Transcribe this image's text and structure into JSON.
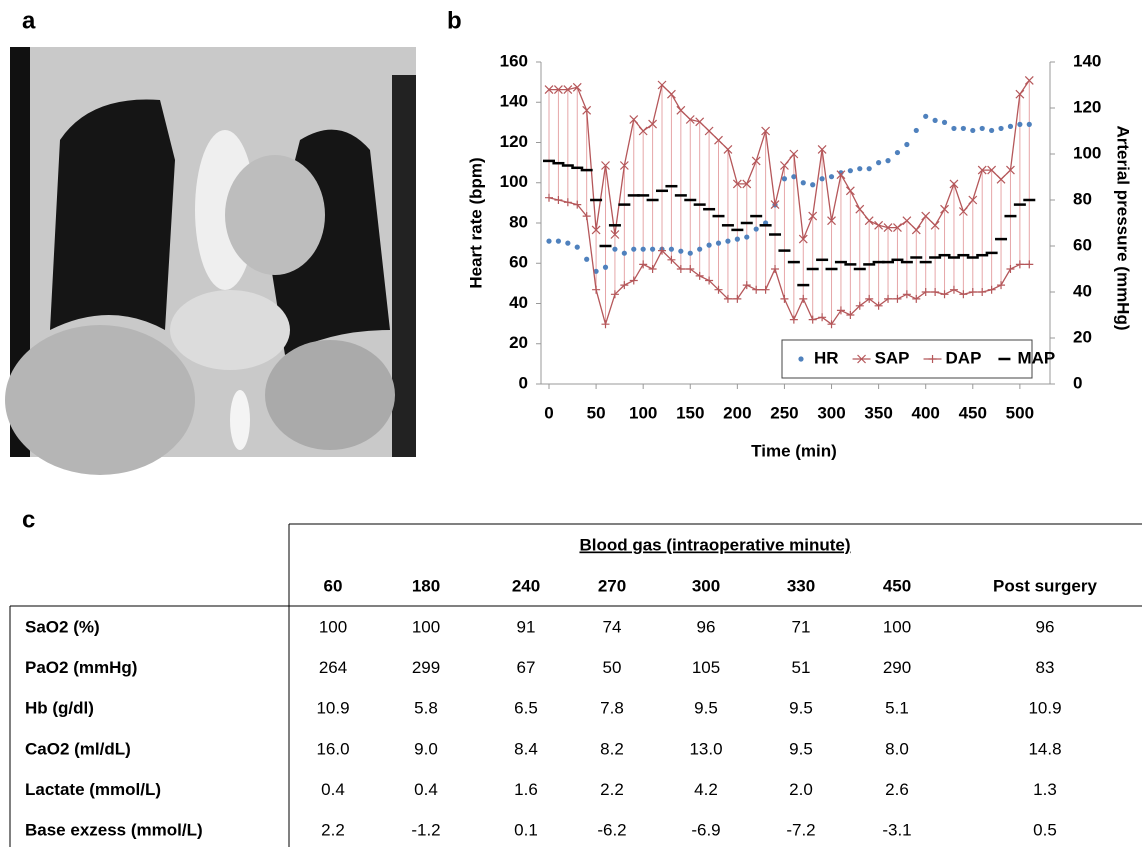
{
  "panels": {
    "a": "a",
    "b": "b",
    "c": "c"
  },
  "chart_data": {
    "type": "line",
    "x_label": "Time (min)",
    "y_label": "Heart rate (bpm)",
    "y2_label": "Arterial pressure (mmHg)",
    "xlim": [
      0,
      515
    ],
    "xticks": [
      0,
      50,
      100,
      150,
      200,
      250,
      300,
      350,
      400,
      450,
      500
    ],
    "ylim": [
      0,
      160
    ],
    "yticks": [
      0,
      20,
      40,
      60,
      80,
      100,
      120,
      140,
      160
    ],
    "y2lim": [
      0,
      140
    ],
    "y2ticks": [
      0,
      20,
      40,
      60,
      80,
      100,
      120,
      140
    ],
    "legend": "lower right",
    "range_color": "#e6a6a8",
    "x": [
      0,
      10,
      20,
      30,
      40,
      50,
      60,
      70,
      80,
      90,
      100,
      110,
      120,
      130,
      140,
      150,
      160,
      170,
      180,
      190,
      200,
      210,
      220,
      230,
      240,
      250,
      260,
      270,
      280,
      290,
      300,
      310,
      320,
      330,
      340,
      350,
      360,
      370,
      380,
      390,
      400,
      410,
      420,
      430,
      440,
      450,
      460,
      470,
      480,
      490,
      500,
      510
    ],
    "series": [
      {
        "name": "HR",
        "color": "#4f81bd",
        "marker": "dot",
        "line": false,
        "values": [
          71,
          71,
          70,
          68,
          62,
          56,
          58,
          67,
          65,
          67,
          67,
          67,
          67,
          67,
          66,
          65,
          67,
          69,
          70,
          71,
          72,
          73,
          77,
          80,
          89,
          102,
          103,
          100,
          99,
          102,
          103,
          105,
          106,
          107,
          107,
          110,
          111,
          115,
          119,
          126,
          133,
          131,
          130,
          127,
          127,
          126,
          127,
          126,
          127,
          128,
          129,
          129
        ]
      },
      {
        "name": "SAP",
        "color": "#b5575a",
        "marker": "x",
        "line": true,
        "axis": "y2",
        "values": [
          128,
          128,
          128,
          129,
          119,
          67,
          95,
          65,
          95,
          115,
          110,
          113,
          130,
          126,
          119,
          115,
          114,
          110,
          106,
          102,
          87,
          87,
          97,
          110,
          78,
          95,
          100,
          63,
          73,
          102,
          71,
          91,
          84,
          76,
          71,
          69,
          68,
          68,
          71,
          67,
          73,
          69,
          76,
          87,
          75,
          80,
          93,
          93,
          89,
          93,
          126,
          132
        ]
      },
      {
        "name": "DAP",
        "color": "#b5575a",
        "marker": "+",
        "line": true,
        "axis": "y2",
        "values": [
          81,
          80,
          79,
          78,
          73,
          41,
          26,
          39,
          43,
          45,
          52,
          50,
          58,
          54,
          50,
          50,
          47,
          45,
          41,
          37,
          37,
          43,
          41,
          41,
          50,
          37,
          28,
          37,
          28,
          29,
          26,
          32,
          30,
          34,
          37,
          34,
          37,
          37,
          39,
          37,
          40,
          40,
          39,
          41,
          39,
          40,
          40,
          41,
          43,
          50,
          52,
          52
        ]
      },
      {
        "name": "MAP",
        "color": "#000000",
        "marker": "dash",
        "line": false,
        "axis": "y2",
        "values": [
          97,
          96,
          95,
          94,
          93,
          80,
          60,
          69,
          78,
          82,
          82,
          80,
          84,
          86,
          82,
          80,
          78,
          76,
          73,
          69,
          67,
          70,
          73,
          69,
          65,
          58,
          53,
          43,
          50,
          54,
          50,
          53,
          52,
          50,
          52,
          53,
          53,
          54,
          53,
          55,
          53,
          55,
          56,
          55,
          56,
          55,
          56,
          57,
          63,
          73,
          78,
          80
        ]
      }
    ]
  },
  "table": {
    "title": "Blood gas (intraoperative minute)",
    "columns": [
      "60",
      "180",
      "240",
      "270",
      "300",
      "330",
      "450",
      "Post surgery"
    ],
    "rows": [
      [
        "SaO2 (%)",
        "100",
        "100",
        "91",
        "74",
        "96",
        "71",
        "100",
        "96"
      ],
      [
        "PaO2 (mmHg)",
        "264",
        "299",
        "67",
        "50",
        "105",
        "51",
        "290",
        "83"
      ],
      [
        "Hb (g/dl)",
        "10.9",
        "5.8",
        "6.5",
        "7.8",
        "9.5",
        "9.5",
        "5.1",
        "10.9"
      ],
      [
        "CaO2 (ml/dL)",
        "16.0",
        "9.0",
        "8.4",
        "8.2",
        "13.0",
        "9.5",
        "8.0",
        "14.8"
      ],
      [
        "Lactate (mmol/L)",
        "0.4",
        "0.4",
        "1.6",
        "2.2",
        "4.2",
        "2.0",
        "2.6",
        "1.3"
      ],
      [
        "Base exzess (mmol/L)",
        "2.2",
        "-1.2",
        "0.1",
        "-6.2",
        "-6.9",
        "-7.2",
        "-3.1",
        "0.5"
      ]
    ]
  }
}
